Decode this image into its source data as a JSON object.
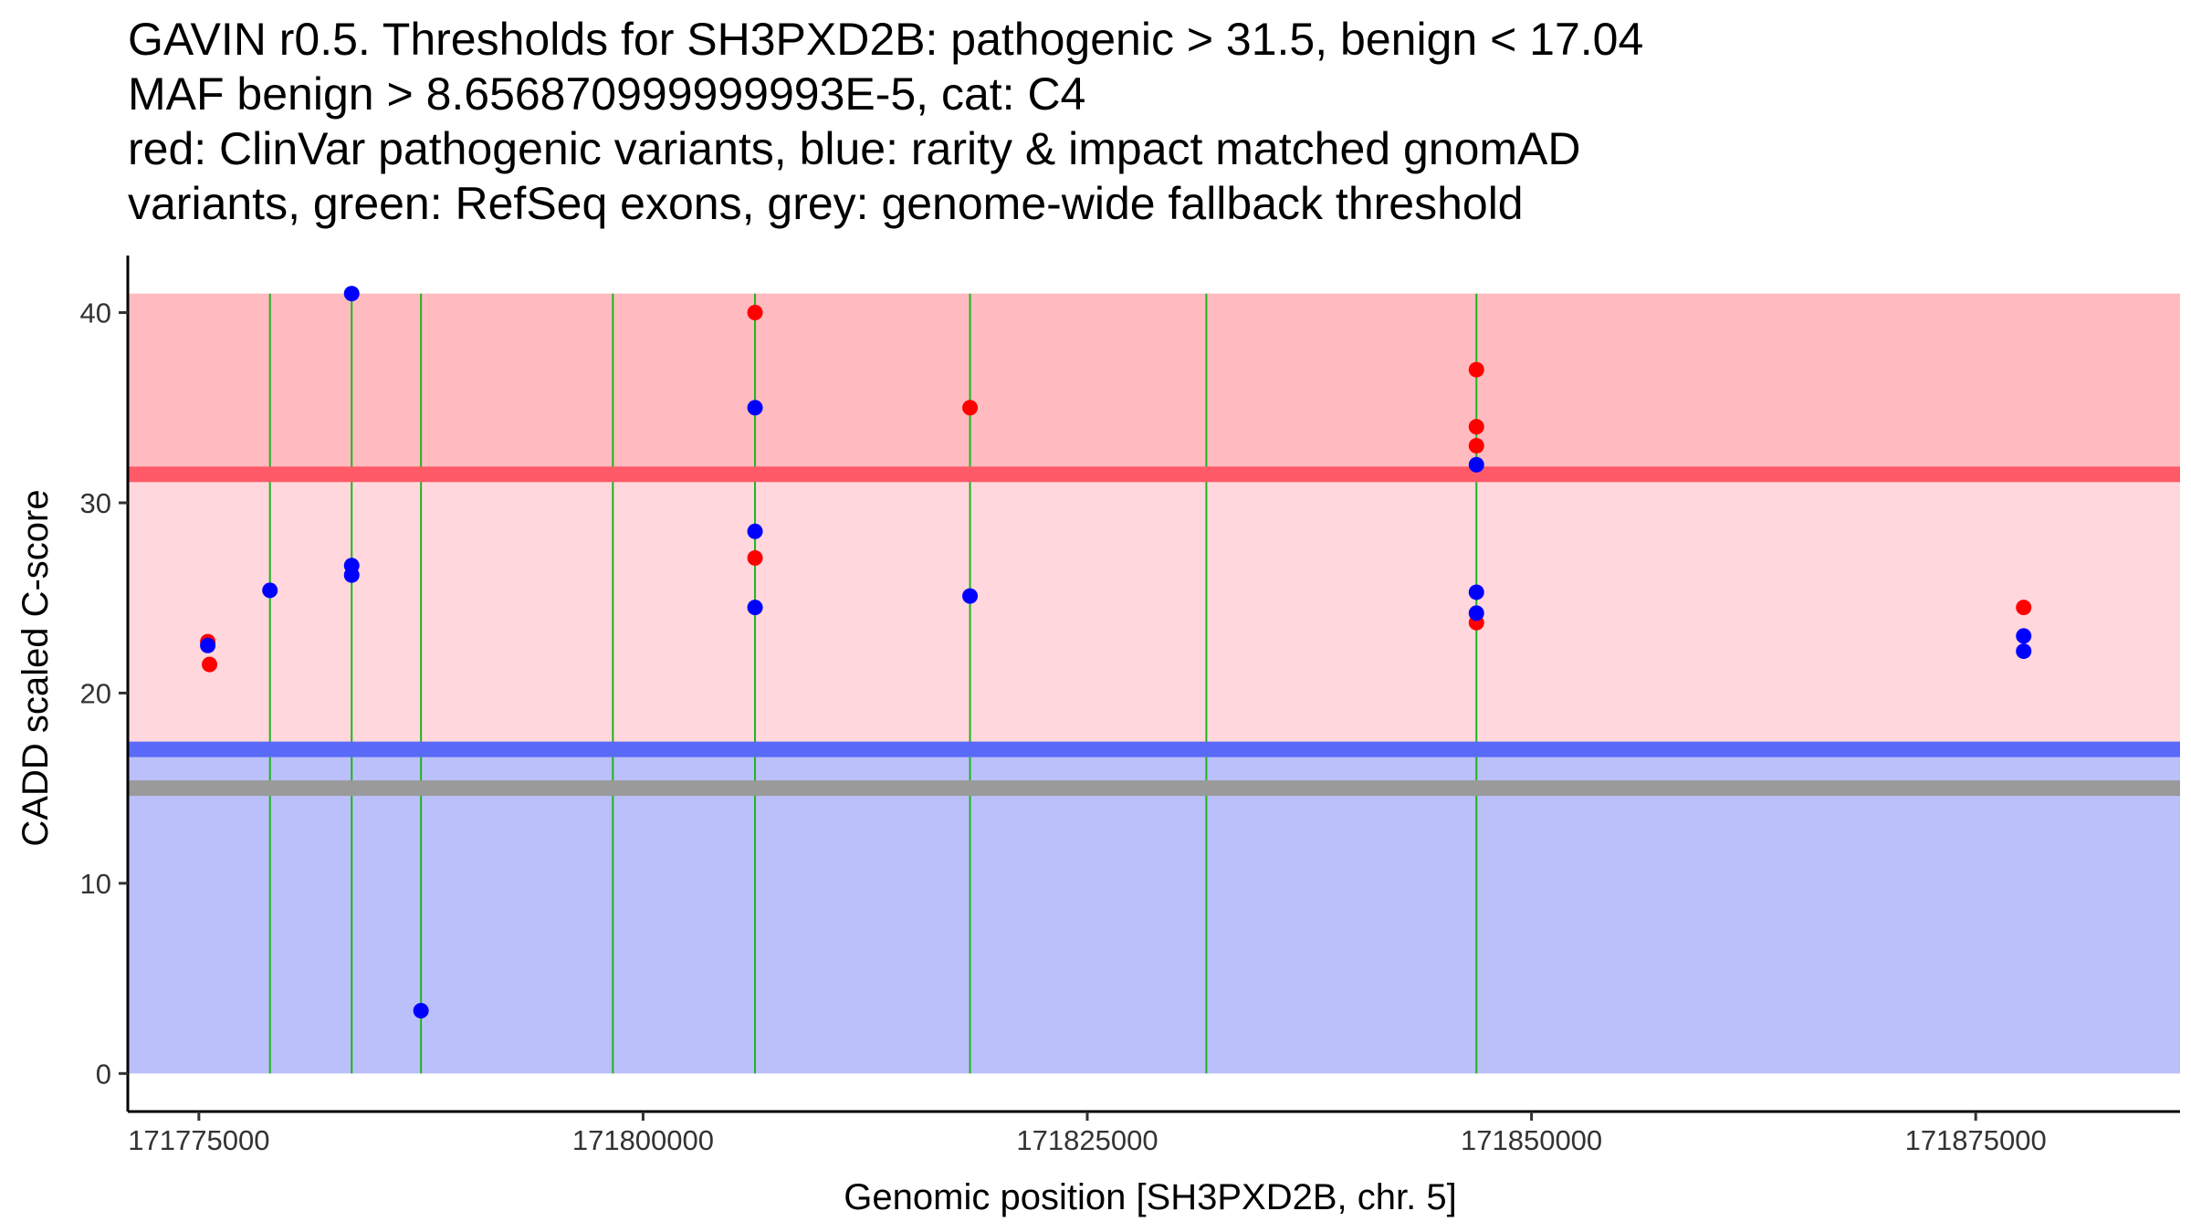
{
  "chart_data": {
    "type": "scatter",
    "title_lines": [
      "GAVIN r0.5. Thresholds for SH3PXD2B: pathogenic > 31.5, benign < 17.04",
      "MAF benign > 8.656870999999993E-5, cat: C4",
      "red: ClinVar pathogenic variants, blue: rarity & impact matched gnomAD",
      "variants, green: RefSeq exons, grey: genome-wide fallback threshold"
    ],
    "xlabel": "Genomic position [SH3PXD2B, chr. 5]",
    "ylabel": "CADD scaled C-score",
    "xlim": [
      171771000,
      171886500
    ],
    "ylim": [
      -2,
      43
    ],
    "x_ticks": [
      171775000,
      171800000,
      171825000,
      171850000,
      171875000
    ],
    "y_ticks": [
      0,
      10,
      20,
      30,
      40
    ],
    "grid": false,
    "colors": {
      "pathogenic_region": "#ffbbc0",
      "vus_region": "#ffd7dc",
      "benign_region": "#bbc0fb",
      "pathogenic_threshold": "#ff5a68",
      "benign_threshold": "#5a6af8",
      "fallback_threshold": "#9a9a9a",
      "exon": "#1db51d",
      "pathogenic_point": "#ff0000",
      "population_point": "#0000ff"
    },
    "thresholds": {
      "pathogenic": 31.5,
      "benign": 17.04,
      "fallback": 15
    },
    "regions": [
      {
        "name": "pathogenic",
        "y0": 31.5,
        "y1": 41
      },
      {
        "name": "vus",
        "y0": 17.04,
        "y1": 31.5
      },
      {
        "name": "benign",
        "y0": 0,
        "y1": 17.04
      }
    ],
    "region_x": [
      171771000,
      171886500
    ],
    "exon_lines": [
      171779000,
      171783600,
      171787500,
      171798300,
      171806300,
      171818400,
      171831700,
      171846900
    ],
    "series": [
      {
        "name": "ClinVar pathogenic variants",
        "points": [
          {
            "x": 171775500,
            "y": 22.7
          },
          {
            "x": 171775600,
            "y": 21.5
          },
          {
            "x": 171806300,
            "y": 40
          },
          {
            "x": 171806300,
            "y": 27.1
          },
          {
            "x": 171818400,
            "y": 35
          },
          {
            "x": 171846900,
            "y": 37
          },
          {
            "x": 171846900,
            "y": 34
          },
          {
            "x": 171846900,
            "y": 33
          },
          {
            "x": 171846900,
            "y": 23.7
          },
          {
            "x": 171877700,
            "y": 24.5
          }
        ]
      },
      {
        "name": "rarity & impact matched gnomAD variants",
        "points": [
          {
            "x": 171775500,
            "y": 22.5
          },
          {
            "x": 171779000,
            "y": 25.4
          },
          {
            "x": 171783600,
            "y": 41
          },
          {
            "x": 171783600,
            "y": 26.7
          },
          {
            "x": 171783600,
            "y": 26.2
          },
          {
            "x": 171787500,
            "y": 3.3
          },
          {
            "x": 171806300,
            "y": 35
          },
          {
            "x": 171806300,
            "y": 28.5
          },
          {
            "x": 171806300,
            "y": 24.5
          },
          {
            "x": 171818400,
            "y": 25.1
          },
          {
            "x": 171846900,
            "y": 32
          },
          {
            "x": 171846900,
            "y": 25.3
          },
          {
            "x": 171846900,
            "y": 24.2
          },
          {
            "x": 171877700,
            "y": 23
          },
          {
            "x": 171877700,
            "y": 22.2
          }
        ]
      }
    ]
  }
}
